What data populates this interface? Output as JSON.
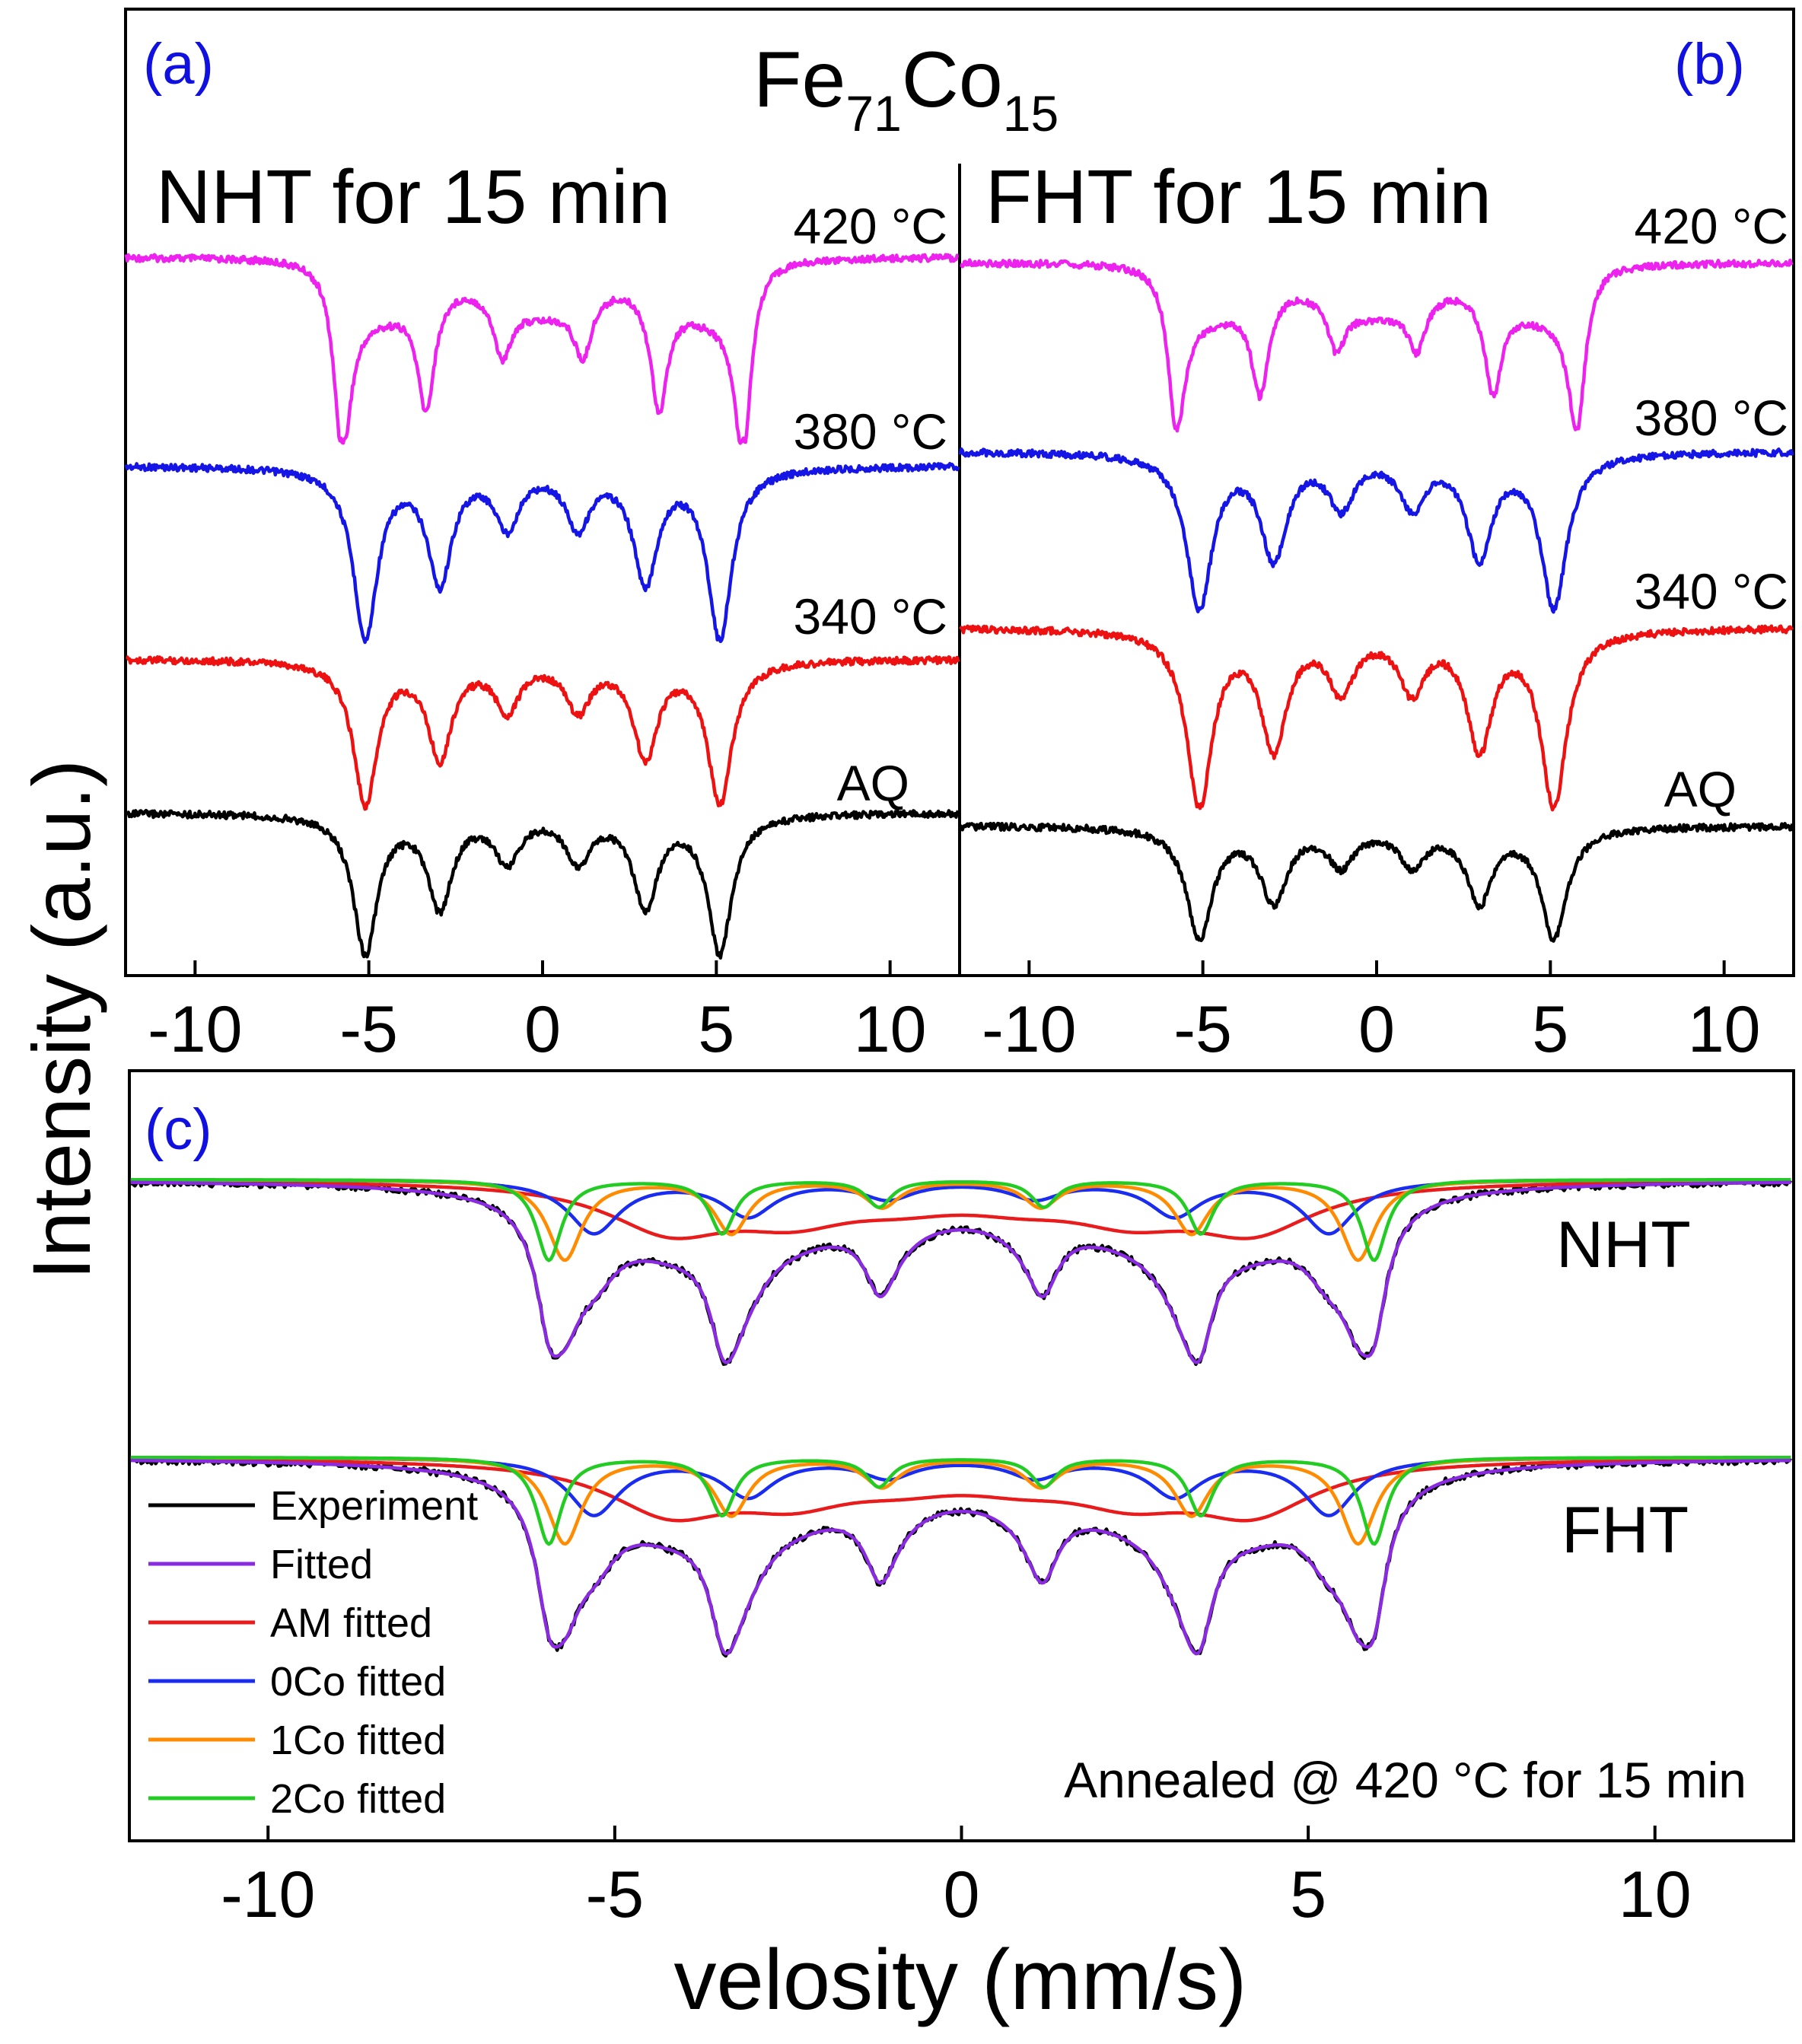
{
  "figure": {
    "title_main": "Fe",
    "title_sub1": "71",
    "title_mid": "Co",
    "title_sub2": "15",
    "y_label": "Intensity (a.u.)",
    "x_label": "velosity (mm/s)"
  },
  "colors": {
    "t420": "#ee22ee",
    "t380": "#1515e6",
    "t340": "#ee1111",
    "aq": "#000000",
    "experiment": "#000000",
    "fitted": "#8a2be2",
    "am": "#e81c1c",
    "c0": "#1a2cf0",
    "c1": "#ff8c00",
    "c2": "#22cc22",
    "panel_letter": "#1010e0"
  },
  "chart_data": [
    {
      "type": "line",
      "panel": "(a)",
      "condition": "NHT for 15 min",
      "xlim": [
        -12,
        12
      ],
      "xticks": [
        -10,
        -5,
        0,
        5,
        10
      ],
      "series": [
        {
          "name": "420 °C",
          "color_key": "t420",
          "kind": "sextet",
          "center": 0.0,
          "field": 5.78,
          "depth": 0.95,
          "width": 0.3,
          "broad_depth": 0.28
        },
        {
          "name": "380 °C",
          "color_key": "t380",
          "kind": "sextet",
          "center": 0.0,
          "field": 5.1,
          "depth": 1.0,
          "width": 0.42
        },
        {
          "name": "340 °C",
          "color_key": "t340",
          "kind": "sextet",
          "center": 0.0,
          "field": 5.1,
          "depth": 0.92,
          "width": 0.42
        },
        {
          "name": "AQ",
          "color_key": "aq",
          "kind": "sextet",
          "center": 0.0,
          "field": 5.1,
          "depth": 0.96,
          "width": 0.42
        }
      ]
    },
    {
      "type": "line",
      "panel": "(b)",
      "condition": "FHT for 15 min",
      "xlim": [
        -12,
        12
      ],
      "xticks": [
        -10,
        -5,
        0,
        5,
        10
      ],
      "series": [
        {
          "name": "420 °C",
          "color_key": "t420",
          "kind": "sextet",
          "center": 0.0,
          "field": 5.78,
          "depth": 0.8,
          "width": 0.3,
          "broad_depth": 0.26
        },
        {
          "name": "380 °C",
          "color_key": "t380",
          "kind": "sextet",
          "center": 0.0,
          "field": 5.1,
          "depth": 0.95,
          "width": 0.45
        },
        {
          "name": "340 °C",
          "color_key": "t340",
          "kind": "sextet",
          "center": 0.0,
          "field": 5.1,
          "depth": 0.95,
          "width": 0.45
        },
        {
          "name": "AQ",
          "color_key": "aq",
          "kind": "sextet",
          "center": 0.0,
          "field": 5.1,
          "depth": 0.88,
          "width": 0.45
        }
      ]
    },
    {
      "type": "line",
      "panel": "(c)",
      "annotation": "Annealed @ 420 °C for 15 min",
      "xlim": [
        -12,
        12
      ],
      "xticks": [
        -10,
        -5,
        0,
        5,
        10
      ],
      "groups": [
        "NHT",
        "FHT"
      ],
      "legend": [
        {
          "label": "Experiment",
          "color_key": "experiment"
        },
        {
          "label": "Fitted",
          "color_key": "fitted"
        },
        {
          "label": "AM fitted",
          "color_key": "am"
        },
        {
          "label": "0Co fitted",
          "color_key": "c0"
        },
        {
          "label": "1Co fitted",
          "color_key": "c1"
        },
        {
          "label": "2Co fitted",
          "color_key": "c2"
        }
      ],
      "components": [
        {
          "name": "AM fitted",
          "color_key": "am",
          "field": 4.2,
          "depth": 0.38,
          "width": 1.1
        },
        {
          "name": "0Co fitted",
          "color_key": "c0",
          "field": 5.3,
          "depth": 0.35,
          "width": 0.45
        },
        {
          "name": "1Co fitted",
          "color_key": "c1",
          "field": 5.72,
          "depth": 0.52,
          "width": 0.3
        },
        {
          "name": "2Co fitted",
          "color_key": "c2",
          "field": 5.95,
          "depth": 0.52,
          "width": 0.22
        }
      ]
    }
  ]
}
